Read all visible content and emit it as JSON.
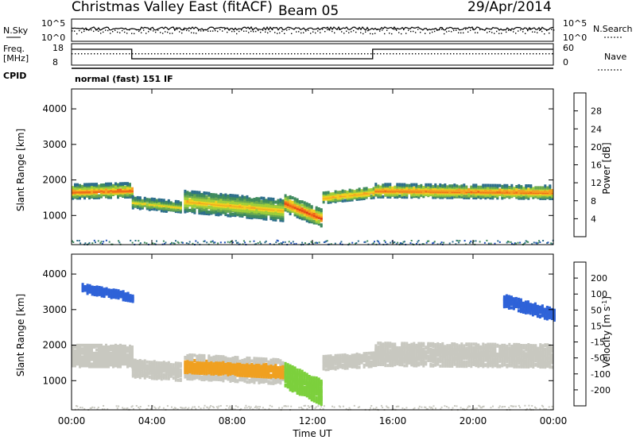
{
  "header": {
    "title": "Christmas Valley East (fitACF)",
    "beam": "Beam 05",
    "date": "29/Apr/2014"
  },
  "params": {
    "nsky_label": "N.Sky",
    "nsky_ticks": [
      "10^5",
      "10^0"
    ],
    "nsearch_label": "N.Search",
    "nsearch_ticks": [
      "10^5",
      "10^0"
    ],
    "freq_label": [
      "Freq.",
      "[MHz]"
    ],
    "freq_ticks": [
      "18",
      "8"
    ],
    "nave_label": "Nave",
    "nave_ticks": [
      "60",
      "0"
    ],
    "cpid_label": "CPID",
    "cpid_value": "normal (fast) 151 IF"
  },
  "colors": {
    "power": [
      "#1f2ed8",
      "#2151b8",
      "#2d6e8c",
      "#3f8a5e",
      "#6aa84f",
      "#9ecf3a",
      "#f0d020",
      "#f5a020",
      "#ef6a18",
      "#e33316",
      "#d50c0c"
    ],
    "velocity": [
      "#1828c8",
      "#2e62d8",
      "#4caa4a",
      "#7cd03c",
      "#c8c8c0",
      "#c8c8c0",
      "#f0a020",
      "#f07a18",
      "#e84814",
      "#d81010"
    ]
  },
  "chart_data": [
    {
      "type": "heatmap",
      "name": "power",
      "ylabel": "Slant Range [km]",
      "xlabel": "Time UT",
      "x_ticks": [
        "00:00",
        "04:00",
        "08:00",
        "12:00",
        "16:00",
        "20:00",
        "00:00"
      ],
      "x_range_hours": [
        0,
        24
      ],
      "y_ticks": [
        1000,
        2000,
        3000,
        4000
      ],
      "y_range_km": [
        180,
        4560
      ],
      "colorbar_label": "Power [dB]",
      "colorbar_ticks": [
        "28",
        "24",
        "20",
        "16",
        "12",
        "8",
        "4"
      ],
      "colorbar_range": [
        0,
        30
      ],
      "bands": [
        {
          "t": [
            0,
            3.0
          ],
          "center": [
            1720,
            1760
          ],
          "width": 380,
          "level": 24
        },
        {
          "t": [
            3.0,
            5.4
          ],
          "center": [
            1420,
            1280
          ],
          "width": 320,
          "level": 18
        },
        {
          "t": [
            5.6,
            10.5
          ],
          "center": [
            1450,
            1200
          ],
          "width": 600,
          "level": 20
        },
        {
          "t": [
            10.6,
            12.5
          ],
          "center": [
            1400,
            950
          ],
          "width": 500,
          "level": 26
        },
        {
          "t": [
            12.5,
            15.0
          ],
          "center": [
            1550,
            1700
          ],
          "width": 300,
          "level": 22
        },
        {
          "t": [
            15.1,
            24.0
          ],
          "center": [
            1750,
            1700
          ],
          "width": 360,
          "level": 24
        }
      ]
    },
    {
      "type": "heatmap",
      "name": "velocity",
      "ylabel": "Slant Range [km]",
      "xlabel": "Time UT",
      "x_ticks": [
        "00:00",
        "04:00",
        "08:00",
        "12:00",
        "16:00",
        "20:00",
        "00:00"
      ],
      "x_range_hours": [
        0,
        24
      ],
      "y_ticks": [
        1000,
        2000,
        3000,
        4000
      ],
      "y_range_km": [
        180,
        4560
      ],
      "colorbar_label": "Velocity [m s^-1]",
      "colorbar_ticks": [
        "200",
        "100",
        "50",
        "15",
        "-15",
        "-50",
        "-100",
        "-200"
      ],
      "colorbar_range": [
        -250,
        250
      ],
      "bands": [
        {
          "t": [
            0,
            3.0
          ],
          "center": [
            1750,
            1750
          ],
          "width": 620,
          "velocity": 0
        },
        {
          "t": [
            3.0,
            5.4
          ],
          "center": [
            1400,
            1300
          ],
          "width": 500,
          "velocity": 0
        },
        {
          "t": [
            5.6,
            10.5
          ],
          "center": [
            1450,
            1300
          ],
          "width": 700,
          "velocity": -60
        },
        {
          "t": [
            10.6,
            12.5
          ],
          "center": [
            1200,
            700
          ],
          "width": 700,
          "velocity": 40
        },
        {
          "t": [
            12.5,
            15.0
          ],
          "center": [
            1550,
            1650
          ],
          "width": 400,
          "velocity": 0
        },
        {
          "t": [
            15.1,
            24.0
          ],
          "center": [
            1800,
            1750
          ],
          "width": 650,
          "velocity": 0
        },
        {
          "t": [
            21.5,
            24.0
          ],
          "center": [
            3300,
            2900
          ],
          "width": 350,
          "velocity": 180
        },
        {
          "t": [
            0.5,
            3.0
          ],
          "center": [
            3650,
            3400
          ],
          "width": 250,
          "velocity": 150
        }
      ]
    }
  ]
}
